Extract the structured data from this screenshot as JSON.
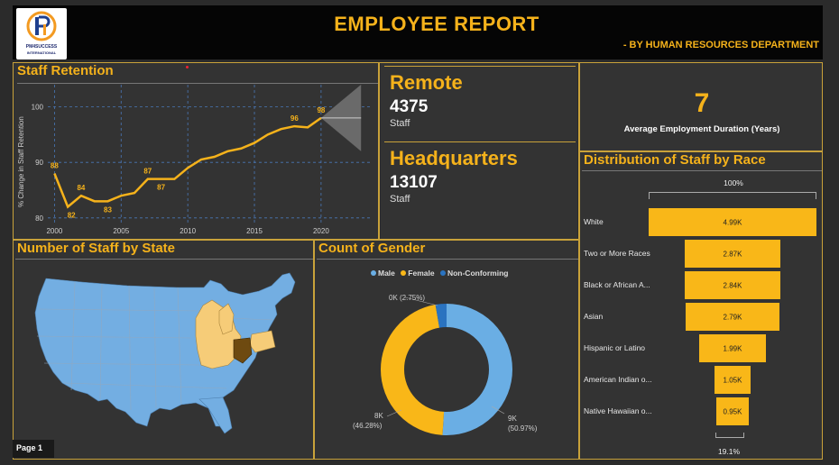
{
  "header": {
    "title": "EMPLOYEE REPORT",
    "subtitle": "- BY HUMAN RESOURCES DEPARTMENT",
    "logo_text": "PM4SUCCESS",
    "logo_sub": "INTERNATIONAL"
  },
  "retention": {
    "title": "Staff Retention",
    "ylabel": "% Change in Staff Retention"
  },
  "chart_data": {
    "type": "line",
    "title": "Staff Retention",
    "ylabel": "% Change in Staff Retention",
    "x": [
      2000,
      2001,
      2002,
      2003,
      2004,
      2005,
      2006,
      2007,
      2008,
      2009,
      2010,
      2011,
      2012,
      2013,
      2014,
      2015,
      2016,
      2017,
      2018,
      2019,
      2020
    ],
    "values": [
      88,
      82,
      84,
      83,
      83,
      84,
      84.5,
      87,
      87,
      87,
      89,
      90.5,
      91,
      92,
      92.5,
      93.5,
      95,
      96,
      96.5,
      96.3,
      98
    ],
    "data_labels": [
      {
        "x": 2000,
        "label": "88"
      },
      {
        "x": 2001,
        "label": "82"
      },
      {
        "x": 2002,
        "label": "84"
      },
      {
        "x": 2004,
        "label": "83"
      },
      {
        "x": 2007,
        "label": "87"
      },
      {
        "x": 2008,
        "label": "87"
      },
      {
        "x": 2018,
        "label": "96"
      },
      {
        "x": 2020,
        "label": "98"
      }
    ],
    "xticks": [
      2000,
      2005,
      2010,
      2015,
      2020
    ],
    "yticks": [
      80,
      90,
      100
    ],
    "ylim": [
      79,
      103
    ],
    "xlim": [
      1999.5,
      2024
    ],
    "forecast": {
      "from": 2020,
      "to": 2023,
      "center": 98,
      "low": 92,
      "high": 104
    },
    "color": "#f5b21b"
  },
  "kpis": {
    "remote_label": "Remote",
    "remote_value": "4375",
    "remote_sub": "Staff",
    "hq_label": "Headquarters",
    "hq_value": "13107",
    "hq_sub": "Staff",
    "duration_value": "7",
    "duration_label": "Average Employment Duration (Years)"
  },
  "race": {
    "title": "Distribution of Staff by Race",
    "top_pct": "100%",
    "bottom_pct": "19.1%",
    "items": [
      {
        "label": "White",
        "value": "4.99K",
        "num": 4.99
      },
      {
        "label": "Two or More Races",
        "value": "2.87K",
        "num": 2.87
      },
      {
        "label": "Black or African A...",
        "value": "2.84K",
        "num": 2.84
      },
      {
        "label": "Asian",
        "value": "2.79K",
        "num": 2.79
      },
      {
        "label": "Hispanic or Latino",
        "value": "1.99K",
        "num": 1.99
      },
      {
        "label": "American Indian o...",
        "value": "1.05K",
        "num": 1.05
      },
      {
        "label": "Native Hawaiian o...",
        "value": "0.95K",
        "num": 0.95
      }
    ]
  },
  "states": {
    "title": "Number of Staff by State"
  },
  "gender": {
    "title": "Count of Gender",
    "legend": [
      {
        "label": "Male",
        "color": "#6aaee4"
      },
      {
        "label": "Female",
        "color": "#f9b718"
      },
      {
        "label": "Non-Conforming",
        "color": "#2a73c0"
      }
    ],
    "slices": [
      {
        "label": "Male",
        "value": 50.97,
        "color": "#6aaee4"
      },
      {
        "label": "Female",
        "value": 46.28,
        "color": "#f9b718"
      },
      {
        "label": "Non-Conforming",
        "value": 2.75,
        "color": "#2a73c0"
      }
    ],
    "label_nc": "0K (2.75%)",
    "label_female_1": "8K",
    "label_female_2": "(46.28%)",
    "label_male_1": "9K",
    "label_male_2": "(50.97%)"
  },
  "footer": {
    "page": "Page 1"
  }
}
